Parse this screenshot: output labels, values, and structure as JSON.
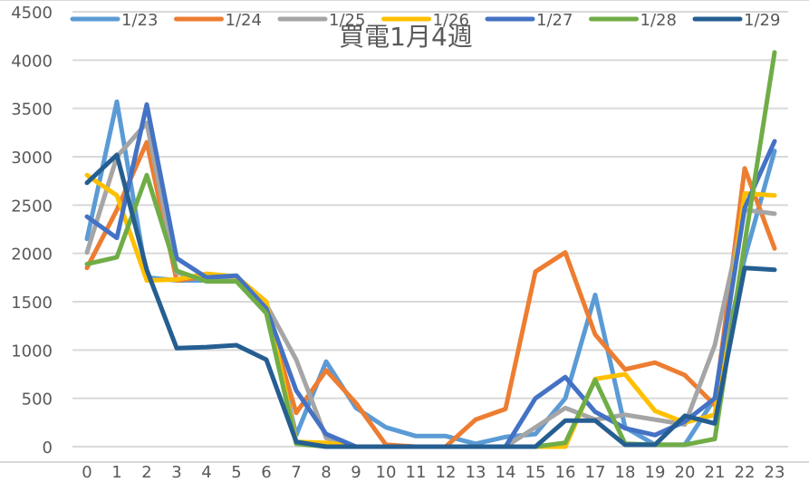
{
  "chart_data": {
    "type": "line",
    "title": "買電1月4週",
    "xlabel": "",
    "ylabel": "",
    "ylim": [
      0,
      4500
    ],
    "yticks": [
      0,
      500,
      1000,
      1500,
      2000,
      2500,
      3000,
      3500,
      4000,
      4500
    ],
    "grid": true,
    "legend_position": "top",
    "categories": [
      "0",
      "1",
      "2",
      "3",
      "4",
      "5",
      "6",
      "7",
      "8",
      "9",
      "10",
      "11",
      "12",
      "13",
      "14",
      "15",
      "16",
      "17",
      "18",
      "19",
      "20",
      "21",
      "22",
      "23"
    ],
    "series": [
      {
        "name": "1/23",
        "color": "#5B9BD5",
        "values": [
          2150,
          3570,
          1750,
          1720,
          1720,
          1720,
          1420,
          120,
          880,
          400,
          200,
          110,
          110,
          30,
          100,
          130,
          500,
          1570,
          200,
          20,
          20,
          500,
          1950,
          3060
        ]
      },
      {
        "name": "1/24",
        "color": "#ED7D31",
        "values": [
          1850,
          2450,
          3150,
          1720,
          1760,
          1720,
          1400,
          350,
          790,
          450,
          20,
          0,
          0,
          280,
          390,
          1810,
          2010,
          1160,
          800,
          870,
          740,
          430,
          2880,
          2050
        ]
      },
      {
        "name": "1/25",
        "color": "#A5A5A5",
        "values": [
          2010,
          3000,
          3350,
          1800,
          1720,
          1720,
          1470,
          900,
          90,
          0,
          0,
          0,
          0,
          0,
          0,
          200,
          400,
          280,
          330,
          280,
          230,
          1050,
          2450,
          2410
        ]
      },
      {
        "name": "1/26",
        "color": "#FFC000",
        "values": [
          2810,
          2600,
          1720,
          1730,
          1790,
          1760,
          1500,
          50,
          40,
          0,
          0,
          0,
          0,
          0,
          0,
          0,
          0,
          700,
          750,
          370,
          250,
          330,
          2620,
          2600
        ]
      },
      {
        "name": "1/27",
        "color": "#4472C4",
        "values": [
          2380,
          2160,
          3540,
          1950,
          1750,
          1770,
          1430,
          580,
          130,
          0,
          0,
          0,
          0,
          0,
          0,
          500,
          720,
          360,
          190,
          120,
          260,
          500,
          2470,
          3160
        ]
      },
      {
        "name": "1/28",
        "color": "#70AD47",
        "values": [
          1890,
          1960,
          2810,
          1820,
          1710,
          1710,
          1380,
          30,
          0,
          0,
          0,
          0,
          0,
          0,
          0,
          0,
          40,
          690,
          30,
          20,
          20,
          80,
          2100,
          4080
        ]
      },
      {
        "name": "1/29",
        "color": "#255E91",
        "values": [
          2730,
          3020,
          1830,
          1020,
          1030,
          1050,
          900,
          50,
          0,
          0,
          0,
          0,
          0,
          0,
          0,
          0,
          270,
          270,
          20,
          20,
          320,
          240,
          1850,
          1830
        ]
      }
    ]
  }
}
